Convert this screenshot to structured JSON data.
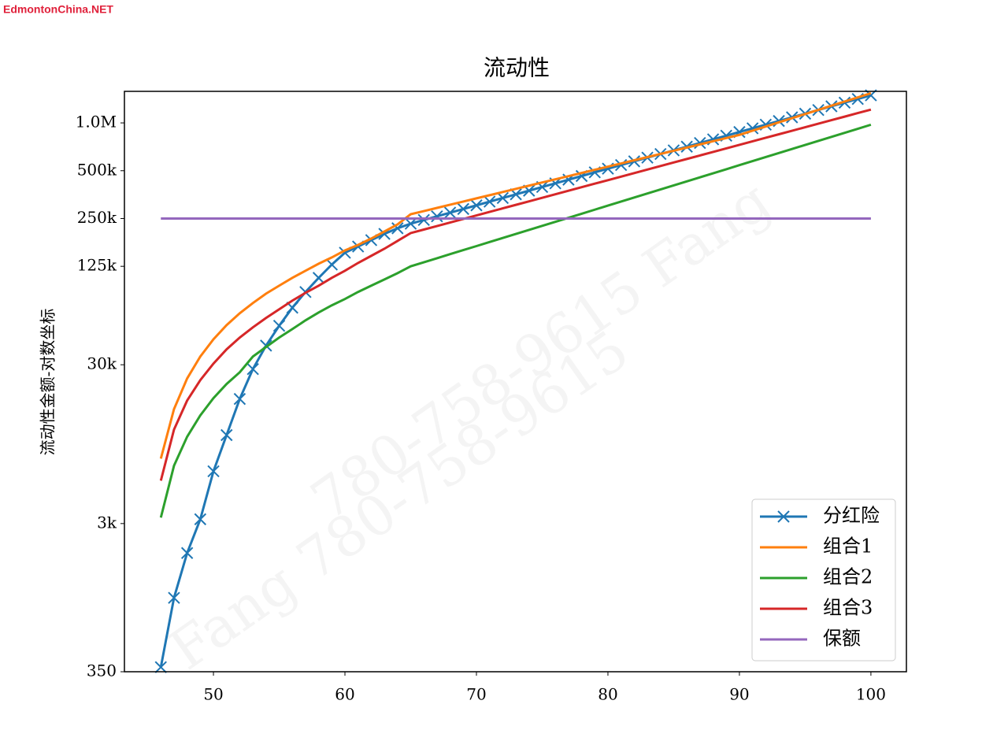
{
  "watermarks": [
    "EdmontonChina.NET",
    "780-758-9615   Fang",
    "Fang   780-758-9615"
  ],
  "chart_data": {
    "type": "line",
    "title": "流动性",
    "ylabel": "流动性金额-对数坐标",
    "log_y": true,
    "grid": false,
    "legend": "lower right",
    "xlim": [
      43.23,
      102.7
    ],
    "xticks": [
      50,
      60,
      70,
      80,
      90,
      100
    ],
    "ylim": [
      350,
      1580000
    ],
    "yticks": [
      350,
      {
        "value": 3000,
        "label": "3k"
      },
      {
        "value": 30000,
        "label": "30k"
      },
      {
        "value": 125000,
        "label": "125k"
      },
      {
        "value": 250000,
        "label": "250k"
      },
      {
        "value": 500000,
        "label": "500k"
      },
      {
        "value": 1000000,
        "label": "1.0M"
      }
    ],
    "x": [
      46,
      47,
      48,
      49,
      50,
      51,
      52,
      53,
      54,
      55,
      56,
      57,
      58,
      59,
      60,
      61,
      62,
      63,
      64,
      65,
      66,
      67,
      68,
      69,
      70,
      71,
      72,
      73,
      74,
      75,
      76,
      77,
      78,
      79,
      80,
      81,
      82,
      83,
      84,
      85,
      86,
      87,
      88,
      89,
      90,
      91,
      92,
      93,
      94,
      95,
      96,
      97,
      98,
      99,
      100
    ],
    "series": [
      {
        "name": "分红险",
        "color": "#1f77b4",
        "marker": "x",
        "values": [
          374,
          1022,
          1957,
          3193,
          6400,
          10820,
          18270,
          28180,
          39600,
          52800,
          68600,
          86100,
          105700,
          128200,
          152200,
          166600,
          182700,
          200000,
          217000,
          232000,
          244700,
          258000,
          272100,
          287000,
          302600,
          319100,
          336600,
          355000,
          374300,
          394800,
          416300,
          439100,
          463000,
          488300,
          515000,
          543100,
          572800,
          604000,
          637000,
          671800,
          708500,
          747200,
          788000,
          831000,
          876400,
          924200,
          974700,
          1028000,
          1084000,
          1143000,
          1206000,
          1272000,
          1341000,
          1414000,
          1491000
        ]
      },
      {
        "name": "组合1",
        "color": "#ff7f0e",
        "values": [
          7690,
          15760,
          24600,
          33800,
          43400,
          53300,
          63300,
          73400,
          84100,
          94400,
          105800,
          117200,
          129800,
          142200,
          157400,
          170500,
          187000,
          207000,
          229600,
          266000,
          278500,
          291600,
          305400,
          319800,
          334800,
          350600,
          367100,
          384400,
          402500,
          421500,
          441300,
          462100,
          483900,
          506700,
          530500,
          555500,
          581700,
          609100,
          637800,
          667800,
          699300,
          732200,
          766700,
          802800,
          840700,
          893100,
          948700,
          1008000,
          1071000,
          1137000,
          1208000,
          1284000,
          1363000,
          1448000,
          1538000
        ]
      },
      {
        "name": "组合2",
        "color": "#2ca02c",
        "values": [
          3270,
          6940,
          10570,
          14390,
          18490,
          22700,
          26900,
          33800,
          38800,
          44500,
          50300,
          57100,
          64000,
          71000,
          77800,
          86200,
          94400,
          103300,
          113200,
          125000,
          132600,
          140600,
          149100,
          158100,
          167600,
          177800,
          188500,
          199900,
          212000,
          224800,
          238300,
          252700,
          268000,
          284200,
          301400,
          319600,
          338900,
          359400,
          381100,
          404100,
          428500,
          454400,
          481800,
          510900,
          541800,
          574500,
          609200,
          646000,
          685000,
          726400,
          770300,
          816800,
          866100,
          918400,
          973900
        ]
      },
      {
        "name": "组合3",
        "color": "#d62728",
        "values": [
          5590,
          11720,
          17860,
          24000,
          30500,
          37500,
          44500,
          51600,
          59100,
          67000,
          76000,
          85100,
          94400,
          105800,
          117200,
          131300,
          145500,
          161300,
          180700,
          202400,
          213000,
          224200,
          236000,
          248400,
          261400,
          275100,
          289600,
          304800,
          320800,
          337600,
          355300,
          374000,
          393600,
          414300,
          436000,
          458900,
          483000,
          508400,
          535100,
          563200,
          592700,
          623800,
          656600,
          691100,
          727300,
          765500,
          805700,
          848000,
          892500,
          939400,
          988700,
          1041000,
          1095000,
          1153000,
          1213000
        ]
      },
      {
        "name": "保额",
        "color": "#9467bd",
        "values": [
          250000,
          250000,
          250000,
          250000,
          250000,
          250000,
          250000,
          250000,
          250000,
          250000,
          250000,
          250000,
          250000,
          250000,
          250000,
          250000,
          250000,
          250000,
          250000,
          250000,
          250000,
          250000,
          250000,
          250000,
          250000,
          250000,
          250000,
          250000,
          250000,
          250000,
          250000,
          250000,
          250000,
          250000,
          250000,
          250000,
          250000,
          250000,
          250000,
          250000,
          250000,
          250000,
          250000,
          250000,
          250000,
          250000,
          250000,
          250000,
          250000,
          250000,
          250000,
          250000,
          250000,
          250000,
          250000
        ]
      }
    ]
  }
}
